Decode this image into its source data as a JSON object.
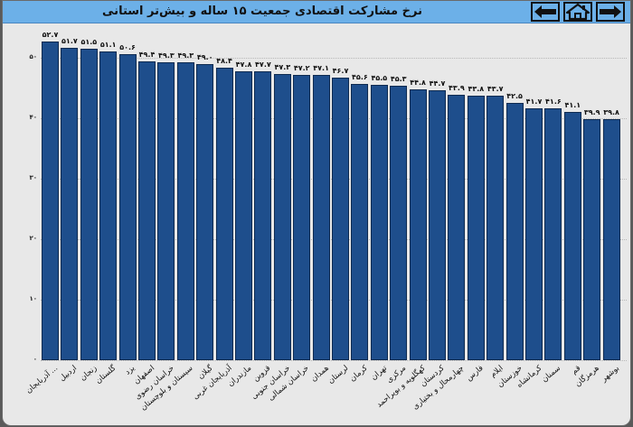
{
  "header": {
    "title": "نرخ مشارکت اقتصادی جمعیت ۱۵ ساله و بیش‌تر استانی",
    "nav": [
      {
        "name": "back-button",
        "icon": "arrow-left-icon"
      },
      {
        "name": "home-button",
        "icon": "home-icon"
      },
      {
        "name": "forward-button",
        "icon": "arrow-right-icon"
      }
    ]
  },
  "colors": {
    "bar": "#1e4e8c",
    "bar_border": "#0e2a50",
    "header": "#6cb0e8",
    "background": "#e8e8e8"
  },
  "y_ticks": [
    {
      "value": 0,
      "label": "۰"
    },
    {
      "value": 10,
      "label": "۱۰"
    },
    {
      "value": 20,
      "label": "۲۰"
    },
    {
      "value": 30,
      "label": "۳۰"
    },
    {
      "value": 40,
      "label": "۴۰"
    },
    {
      "value": 50,
      "label": "۵۰"
    }
  ],
  "chart_data": {
    "type": "bar",
    "title": "نرخ مشارکت اقتصادی جمعیت ۱۵ ساله و بیش‌تر استانی",
    "xlabel": "",
    "ylabel": "",
    "ylim": [
      0,
      53
    ],
    "grid": "horizontal dotted",
    "legend": "none",
    "categories": [
      "... آذربایجان",
      "اردبیل",
      "زنجان",
      "گلستان",
      "یزد",
      "اصفهان",
      "خراسان رضوی",
      "سیستان و بلوچستان",
      "گیلان",
      "آذربایجان غربی",
      "مازندران",
      "قزوین",
      "خراسان جنوبی",
      "خراسان شمالی",
      "همدان",
      "لرستان",
      "کرمان",
      "تهران",
      "مرکزی",
      "کهگلویه و بویراحمد",
      "کردستان",
      "چهارمحال و بختیاری",
      "فارس",
      "ایلام",
      "خوزستان",
      "کرمانشاه",
      "سمنان",
      "قم",
      "هرمزگان",
      "بوشهر"
    ],
    "values": [
      52.7,
      51.7,
      51.5,
      51.1,
      50.6,
      49.4,
      49.3,
      49.3,
      49.0,
      48.4,
      47.8,
      47.7,
      47.3,
      47.2,
      47.1,
      46.7,
      45.6,
      45.5,
      45.3,
      44.8,
      44.7,
      43.9,
      43.8,
      43.7,
      42.5,
      41.7,
      41.6,
      41.1,
      39.9,
      39.8
    ],
    "value_labels": [
      "۵۲.۷",
      "۵۱.۷",
      "۵۱.۵",
      "۵۱.۱",
      "۵۰.۶",
      "۴۹.۴",
      "۴۹.۳",
      "۴۹.۳",
      "۴۹.۰",
      "۴۸.۴",
      "۴۷.۸",
      "۴۷.۷",
      "۴۷.۳",
      "۴۷.۲",
      "۴۷.۱",
      "۴۶.۷",
      "۴۵.۶",
      "۴۵.۵",
      "۴۵.۳",
      "۴۴.۸",
      "۴۴.۷",
      "۴۳.۹",
      "۴۳.۸",
      "۴۳.۷",
      "۴۲.۵",
      "۴۱.۷",
      "۴۱.۶",
      "۴۱.۱",
      "۳۹.۹",
      "۳۹.۸"
    ]
  }
}
